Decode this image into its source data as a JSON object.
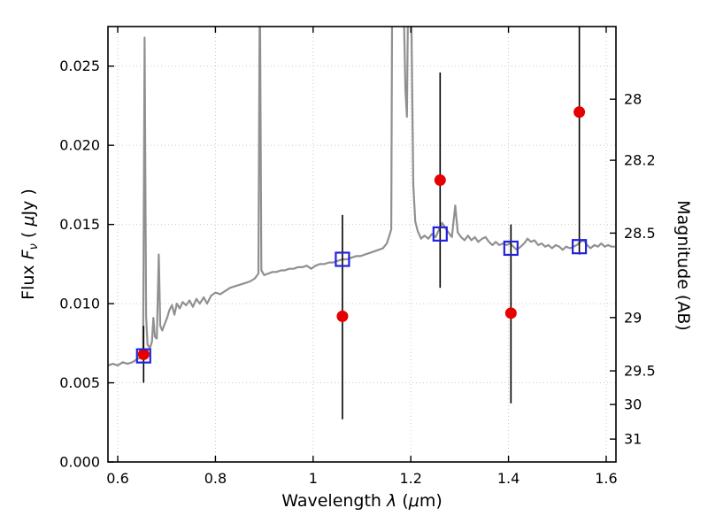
{
  "figure": {
    "background": "#ffffff",
    "frame_color": "#000000",
    "grid_color": "#c9c9c9"
  },
  "chart_data": {
    "type": "line+scatter",
    "title": "",
    "xlabel": {
      "pre": "Wavelength ",
      "sym": "λ",
      "unit_pre": " (",
      "mu": "μ",
      "unit_post": "m)"
    },
    "ylabel_left": {
      "pre": "Flux ",
      "sym": "F",
      "sub": "ν",
      "unit_pre": " ( ",
      "mu": "μ",
      "unit_post": "Jy )"
    },
    "ylabel_right": "Magnitude (AB)",
    "xlim": [
      0.58,
      1.62
    ],
    "ylim": [
      0.0,
      0.0275
    ],
    "grid": "dotted",
    "x_ticks": {
      "values": [
        0.6,
        0.8,
        1.0,
        1.2,
        1.4,
        1.6
      ],
      "labels": [
        "0.6",
        "0.8",
        "1",
        "1.2",
        "1.4",
        "1.6"
      ]
    },
    "y_ticks_left": {
      "values": [
        0.0,
        0.005,
        0.01,
        0.015,
        0.02,
        0.025
      ],
      "labels": [
        "0.000",
        "0.005",
        "0.010",
        "0.015",
        "0.020",
        "0.025"
      ]
    },
    "y_ticks_right": {
      "mags": [
        28,
        28.2,
        28.5,
        29,
        29.5,
        30,
        31
      ],
      "labels": [
        "28",
        "28.2",
        "28.5",
        "29",
        "29.5",
        "30",
        "31"
      ],
      "ab_zeropoint": 23.9
    },
    "series": {
      "spectrum": {
        "name": "model-spectrum",
        "color": "#909090",
        "width": 2.2,
        "points": [
          [
            0.58,
            0.0061
          ],
          [
            0.59,
            0.0062
          ],
          [
            0.6,
            0.0061
          ],
          [
            0.61,
            0.0063
          ],
          [
            0.62,
            0.0062
          ],
          [
            0.63,
            0.0063
          ],
          [
            0.64,
            0.0065
          ],
          [
            0.648,
            0.0066
          ],
          [
            0.652,
            0.0068
          ],
          [
            0.655,
            0.0268
          ],
          [
            0.658,
            0.0092
          ],
          [
            0.661,
            0.0074
          ],
          [
            0.666,
            0.0072
          ],
          [
            0.67,
            0.0076
          ],
          [
            0.673,
            0.0091
          ],
          [
            0.676,
            0.0079
          ],
          [
            0.68,
            0.0078
          ],
          [
            0.684,
            0.0131
          ],
          [
            0.687,
            0.0086
          ],
          [
            0.691,
            0.0083
          ],
          [
            0.696,
            0.0087
          ],
          [
            0.701,
            0.0091
          ],
          [
            0.706,
            0.0096
          ],
          [
            0.711,
            0.0099
          ],
          [
            0.716,
            0.0093
          ],
          [
            0.721,
            0.01
          ],
          [
            0.727,
            0.0097
          ],
          [
            0.733,
            0.0101
          ],
          [
            0.74,
            0.0099
          ],
          [
            0.747,
            0.0102
          ],
          [
            0.754,
            0.0098
          ],
          [
            0.761,
            0.0103
          ],
          [
            0.768,
            0.01
          ],
          [
            0.776,
            0.0104
          ],
          [
            0.783,
            0.01
          ],
          [
            0.791,
            0.0105
          ],
          [
            0.8,
            0.0107
          ],
          [
            0.81,
            0.0106
          ],
          [
            0.82,
            0.0108
          ],
          [
            0.83,
            0.011
          ],
          [
            0.84,
            0.0111
          ],
          [
            0.851,
            0.0112
          ],
          [
            0.861,
            0.0113
          ],
          [
            0.871,
            0.0114
          ],
          [
            0.881,
            0.0116
          ],
          [
            0.888,
            0.0119
          ],
          [
            0.891,
            0.031
          ],
          [
            0.894,
            0.0121
          ],
          [
            0.9,
            0.0118
          ],
          [
            0.908,
            0.0119
          ],
          [
            0.917,
            0.012
          ],
          [
            0.925,
            0.012
          ],
          [
            0.934,
            0.0121
          ],
          [
            0.942,
            0.0121
          ],
          [
            0.951,
            0.0122
          ],
          [
            0.96,
            0.0122
          ],
          [
            0.969,
            0.0123
          ],
          [
            0.978,
            0.0123
          ],
          [
            0.987,
            0.0124
          ],
          [
            0.996,
            0.0122
          ],
          [
            1.005,
            0.0124
          ],
          [
            1.014,
            0.0125
          ],
          [
            1.023,
            0.0125
          ],
          [
            1.032,
            0.0126
          ],
          [
            1.041,
            0.0126
          ],
          [
            1.05,
            0.0127
          ],
          [
            1.06,
            0.0128
          ],
          [
            1.069,
            0.0128
          ],
          [
            1.078,
            0.0129
          ],
          [
            1.088,
            0.013
          ],
          [
            1.097,
            0.013
          ],
          [
            1.106,
            0.0131
          ],
          [
            1.116,
            0.0132
          ],
          [
            1.125,
            0.0133
          ],
          [
            1.134,
            0.0134
          ],
          [
            1.143,
            0.0135
          ],
          [
            1.151,
            0.0138
          ],
          [
            1.157,
            0.0144
          ],
          [
            1.16,
            0.0147
          ],
          [
            1.162,
            0.031
          ],
          [
            1.184,
            0.031
          ],
          [
            1.189,
            0.0235
          ],
          [
            1.192,
            0.0218
          ],
          [
            1.195,
            0.031
          ],
          [
            1.2,
            0.031
          ],
          [
            1.205,
            0.0175
          ],
          [
            1.209,
            0.0152
          ],
          [
            1.214,
            0.0146
          ],
          [
            1.221,
            0.0141
          ],
          [
            1.228,
            0.0143
          ],
          [
            1.236,
            0.0141
          ],
          [
            1.243,
            0.0144
          ],
          [
            1.251,
            0.0142
          ],
          [
            1.258,
            0.0147
          ],
          [
            1.264,
            0.0151
          ],
          [
            1.27,
            0.0148
          ],
          [
            1.277,
            0.0145
          ],
          [
            1.284,
            0.0142
          ],
          [
            1.291,
            0.0162
          ],
          [
            1.296,
            0.0145
          ],
          [
            1.303,
            0.0142
          ],
          [
            1.31,
            0.014
          ],
          [
            1.317,
            0.0143
          ],
          [
            1.324,
            0.014
          ],
          [
            1.331,
            0.0142
          ],
          [
            1.338,
            0.0139
          ],
          [
            1.346,
            0.0141
          ],
          [
            1.353,
            0.0142
          ],
          [
            1.36,
            0.0139
          ],
          [
            1.367,
            0.0137
          ],
          [
            1.374,
            0.0139
          ],
          [
            1.381,
            0.0137
          ],
          [
            1.389,
            0.0138
          ],
          [
            1.396,
            0.0137
          ],
          [
            1.403,
            0.0138
          ],
          [
            1.41,
            0.0136
          ],
          [
            1.417,
            0.0134
          ],
          [
            1.425,
            0.0136
          ],
          [
            1.432,
            0.0138
          ],
          [
            1.439,
            0.0141
          ],
          [
            1.446,
            0.0139
          ],
          [
            1.453,
            0.014
          ],
          [
            1.461,
            0.0137
          ],
          [
            1.468,
            0.0138
          ],
          [
            1.475,
            0.0136
          ],
          [
            1.482,
            0.0137
          ],
          [
            1.489,
            0.0135
          ],
          [
            1.497,
            0.0137
          ],
          [
            1.504,
            0.0136
          ],
          [
            1.511,
            0.0134
          ],
          [
            1.518,
            0.0136
          ],
          [
            1.526,
            0.0135
          ],
          [
            1.533,
            0.0136
          ],
          [
            1.54,
            0.0137
          ],
          [
            1.547,
            0.0139
          ],
          [
            1.554,
            0.014
          ],
          [
            1.561,
            0.0137
          ],
          [
            1.568,
            0.0135
          ],
          [
            1.576,
            0.0137
          ],
          [
            1.583,
            0.0136
          ],
          [
            1.59,
            0.0138
          ],
          [
            1.597,
            0.0136
          ],
          [
            1.604,
            0.0137
          ],
          [
            1.611,
            0.0136
          ],
          [
            1.618,
            0.0136
          ]
        ]
      },
      "observed": {
        "name": "observed-photometry",
        "marker": "circle",
        "color": "#e60000",
        "errorbar_color": "#000000",
        "points": [
          {
            "x": 0.653,
            "y": 0.0068,
            "lo": 0.005,
            "hi": 0.0086
          },
          {
            "x": 1.06,
            "y": 0.0092,
            "lo": 0.0027,
            "hi": 0.0156
          },
          {
            "x": 1.26,
            "y": 0.0178,
            "lo": 0.011,
            "hi": 0.0246
          },
          {
            "x": 1.405,
            "y": 0.0094,
            "lo": 0.0037,
            "hi": 0.015
          },
          {
            "x": 1.545,
            "y": 0.0221,
            "lo": 0.0131,
            "hi": 0.031
          }
        ]
      },
      "model": {
        "name": "model-photometry",
        "marker": "open-square",
        "color": "#2222dd",
        "points": [
          {
            "x": 0.653,
            "y": 0.0067
          },
          {
            "x": 1.06,
            "y": 0.0128
          },
          {
            "x": 1.26,
            "y": 0.0144
          },
          {
            "x": 1.405,
            "y": 0.0135
          },
          {
            "x": 1.545,
            "y": 0.0136
          }
        ]
      }
    }
  }
}
